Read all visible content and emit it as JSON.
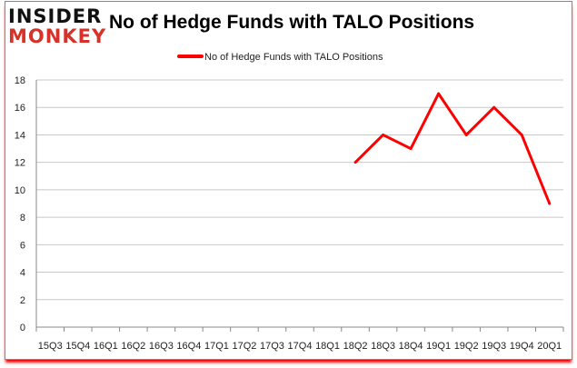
{
  "logo": {
    "line1": "INSIDER",
    "line2": "MONKEY"
  },
  "chart_data": {
    "type": "line",
    "title": "No of Hedge Funds with TALO Positions",
    "categories": [
      "15Q3",
      "15Q4",
      "16Q1",
      "16Q2",
      "16Q3",
      "16Q4",
      "17Q1",
      "17Q2",
      "17Q3",
      "17Q4",
      "18Q1",
      "18Q2",
      "18Q3",
      "18Q4",
      "19Q1",
      "19Q2",
      "19Q3",
      "19Q4",
      "20Q1"
    ],
    "series": [
      {
        "name": "No of Hedge Funds with TALO Positions",
        "color": "#ff0000",
        "values": [
          null,
          null,
          null,
          null,
          null,
          null,
          null,
          null,
          null,
          null,
          null,
          12,
          14,
          13,
          17,
          14,
          16,
          14,
          9
        ]
      }
    ],
    "ylim": [
      0,
      18
    ],
    "yticks": [
      0,
      2,
      4,
      6,
      8,
      10,
      12,
      14,
      16,
      18
    ],
    "grid": true,
    "legend": "top-center"
  }
}
